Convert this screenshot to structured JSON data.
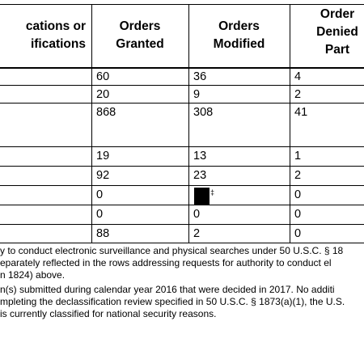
{
  "table": {
    "headers": {
      "col0": [
        "cations or",
        "ifications"
      ],
      "col1": [
        "Orders",
        "Granted"
      ],
      "col2": [
        "Orders",
        "Modified"
      ],
      "col3": [
        "Order",
        "Denied",
        "Part"
      ]
    },
    "rows": [
      {
        "granted": "60",
        "modified": "36",
        "denied": "4"
      },
      {
        "granted": "20",
        "modified": "9",
        "denied": "2"
      },
      {
        "granted": "868",
        "modified": "308",
        "denied": "41"
      },
      {
        "granted": "19",
        "modified": "13",
        "denied": "1"
      },
      {
        "granted": "92",
        "modified": "23",
        "denied": "2"
      },
      {
        "granted": "0",
        "modified": "",
        "denied": "0"
      },
      {
        "granted": "0",
        "modified": "0",
        "denied": "0"
      },
      {
        "granted": "88",
        "modified": "2",
        "denied": "0"
      }
    ],
    "redaction_mark": "‡"
  },
  "footnotes": [
    "y to conduct electronic surveillance and physical searches under 50 U.S.C. § 18",
    "eparately reflected in the rows addressing requests for authority to conduct el",
    "n 1824) above.",
    "n(s) submitted during calendar year 2016 that were decided in 2017. No additi",
    "mpleting the declassification review specified in 50 U.S.C. § 1873(a)(1), the U.S.",
    "is currently classified for national security reasons."
  ]
}
